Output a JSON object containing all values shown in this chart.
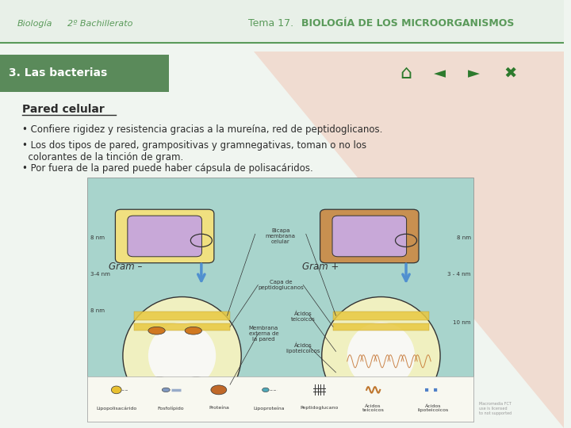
{
  "bg_color": "#f0f5f0",
  "header_bg": "#e8f0e8",
  "header_line_color": "#5a9a5a",
  "header_text_biologia": "Biología",
  "header_text_bachillerato": "2º Bachillerato",
  "header_text_tema": "Tema 17. ",
  "header_text_bold": "BIOLOGÍA DE LOS MICROORGANISMOS",
  "header_text_color": "#5a9a5a",
  "section_bg": "#5a8a5a",
  "section_text": "3. Las bacterias",
  "section_text_color": "#ffffff",
  "title_text": "Pared celular",
  "title_color": "#2c2c2c",
  "bullet1": "• Confiere rigidez y resistencia gracias a la mureína, red de peptidoglicanos.",
  "bullet2": "• Los dos tipos de pared, grampositivas y gramnegativas, toman o no los\n  colorantes de la tinción de gram.",
  "bullet3": "• Por fuera de la pared puede haber cápsula de polisacáridos.",
  "body_text_color": "#2c2c2c",
  "pink_triangle_color": "#f0c8b8",
  "image_bg": "#a8d4cc",
  "nav_color": "#2d7a2d",
  "footer_note": "Macromedia FCT\nuse is licensed\nto not supported"
}
